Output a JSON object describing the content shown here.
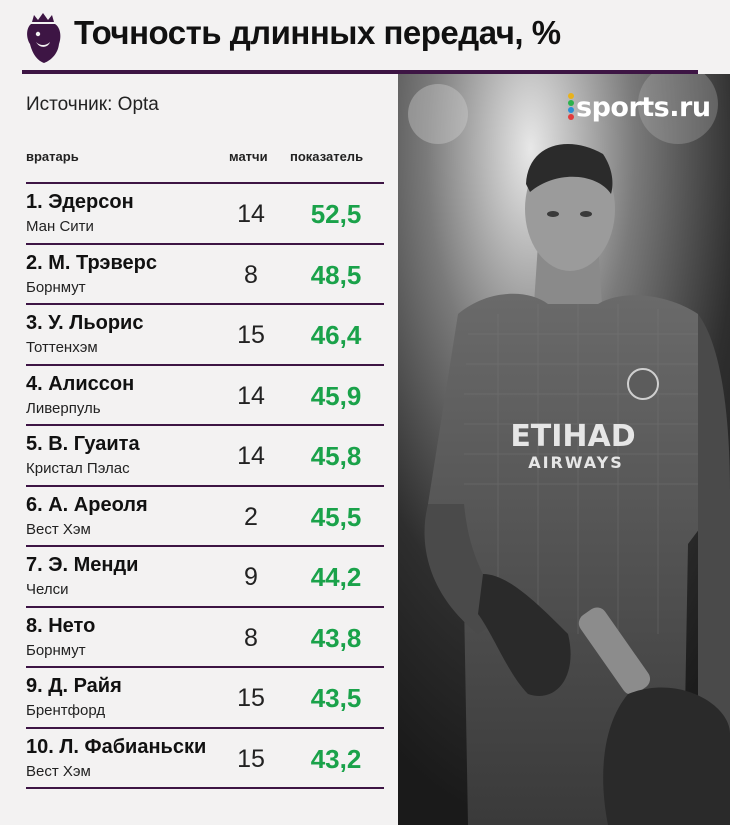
{
  "header": {
    "title": "Точность длинных передач, %",
    "logo_icon": "premier-league-lion-icon"
  },
  "source": "Источник: Opta",
  "brand": {
    "text": "sports.ru",
    "dot_colors": [
      "#e8b21c",
      "#2bb24c",
      "#2a8fd6",
      "#e23b3b"
    ]
  },
  "columns": {
    "goalkeeper": "вратарь",
    "matches": "матчи",
    "score": "показатель"
  },
  "colors": {
    "accent": "#3d1544",
    "value": "#1aa24a"
  },
  "rows": [
    {
      "name": "1. Эдерсон",
      "club": "Ман Сити",
      "matches": "14",
      "value": "52,5"
    },
    {
      "name": "2. М. Трэверс",
      "club": "Борнмут",
      "matches": "8",
      "value": "48,5"
    },
    {
      "name": "3. У. Льорис",
      "club": "Тоттенхэм",
      "matches": "15",
      "value": "46,4"
    },
    {
      "name": "4. Алиссон",
      "club": "Ливерпуль",
      "matches": "14",
      "value": "45,9"
    },
    {
      "name": "5. В. Гуаита",
      "club": "Кристал Пэлас",
      "matches": "14",
      "value": "45,8"
    },
    {
      "name": "6. А. Ареоля",
      "club": "Вест Хэм",
      "matches": "2",
      "value": "45,5"
    },
    {
      "name": "7. Э. Менди",
      "club": "Челси",
      "matches": "9",
      "value": "44,2"
    },
    {
      "name": "8. Нето",
      "club": "Борнмут",
      "matches": "8",
      "value": "43,8"
    },
    {
      "name": "9. Д. Райя",
      "club": "Брентфорд",
      "matches": "15",
      "value": "43,5"
    },
    {
      "name": "10. Л. Фабианьски",
      "club": "Вест Хэм",
      "matches": "15",
      "value": "43,2"
    }
  ],
  "photo": {
    "shirt_sponsor_1": "ETIHAD",
    "shirt_sponsor_2": "AIRWAYS"
  }
}
